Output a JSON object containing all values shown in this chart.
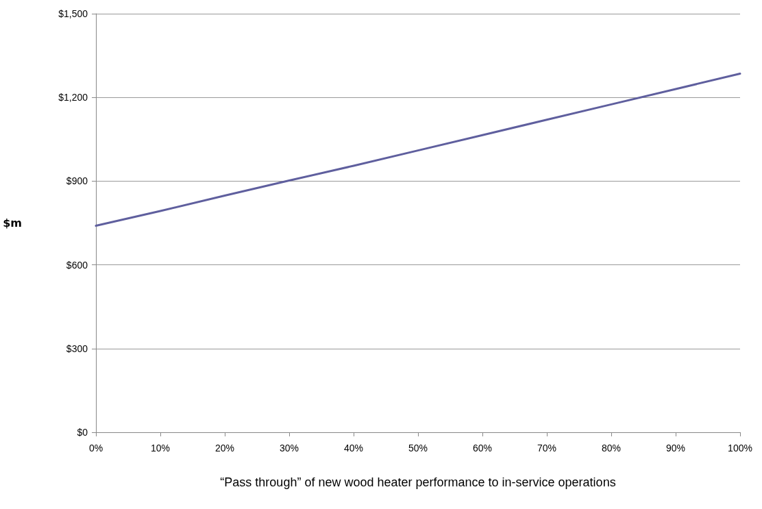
{
  "chart_data": {
    "type": "line",
    "xlabel": "“Pass through” of new wood heater performance to in-service operations",
    "ylabel": "$m",
    "x": [
      0,
      10,
      20,
      30,
      40,
      50,
      60,
      70,
      80,
      90,
      100
    ],
    "series": [
      {
        "color": "#5f5f9e",
        "values": [
          740,
          793,
          848,
          902,
          955,
          1010,
          1065,
          1120,
          1175,
          1230,
          1285
        ]
      }
    ],
    "xlim": [
      0,
      100
    ],
    "xticks": [
      {
        "value": 0,
        "label": "0%"
      },
      {
        "value": 10,
        "label": "10%"
      },
      {
        "value": 20,
        "label": "20%"
      },
      {
        "value": 30,
        "label": "30%"
      },
      {
        "value": 40,
        "label": "40%"
      },
      {
        "value": 50,
        "label": "50%"
      },
      {
        "value": 60,
        "label": "60%"
      },
      {
        "value": 70,
        "label": "70%"
      },
      {
        "value": 80,
        "label": "80%"
      },
      {
        "value": 90,
        "label": "90%"
      },
      {
        "value": 100,
        "label": "100%"
      }
    ],
    "ylim": [
      0,
      1500
    ],
    "yticks": [
      {
        "value": 0,
        "label": "$0"
      },
      {
        "value": 300,
        "label": "$300"
      },
      {
        "value": 600,
        "label": "$600"
      },
      {
        "value": 900,
        "label": "$900"
      },
      {
        "value": 1200,
        "label": "$1,200"
      },
      {
        "value": 1500,
        "label": "$1,500"
      }
    ],
    "grid": "y",
    "legend": false,
    "marker": "none",
    "line_style": "solid"
  }
}
